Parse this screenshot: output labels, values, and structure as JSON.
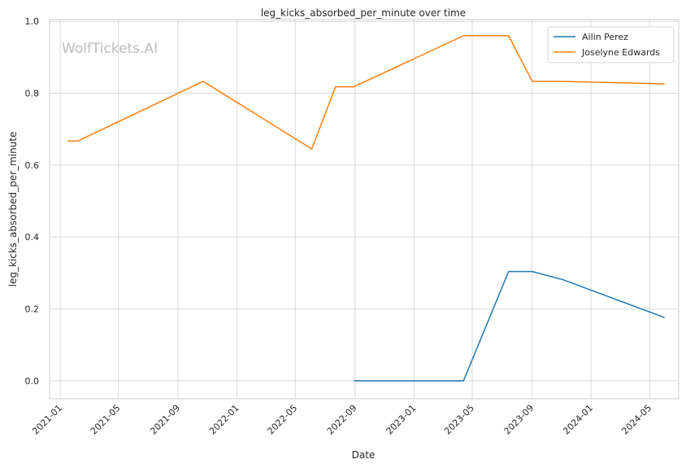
{
  "chart_data": {
    "type": "line",
    "title": "leg_kicks_absorbed_per_minute over time",
    "xlabel": "Date",
    "ylabel": "leg_kicks_absorbed_per_minute",
    "watermark": "WolfTickets.AI",
    "x_tick_labels": [
      "2021-01",
      "2021-05",
      "2021-09",
      "2022-01",
      "2022-05",
      "2022-09",
      "2023-01",
      "2023-05",
      "2023-09",
      "2024-01",
      "2024-05"
    ],
    "y_tick_labels": [
      "0.0",
      "0.2",
      "0.4",
      "0.6",
      "0.8",
      "1.0"
    ],
    "xlim": [
      "2020-12-10",
      "2024-06-30"
    ],
    "ylim": [
      -0.05,
      1.005
    ],
    "grid": true,
    "legend_position": "top-right",
    "series": [
      {
        "name": "Ailin Perez",
        "color": "#1f77b4",
        "x": [
          "2022-08-30",
          "2023-04-13",
          "2023-07-15",
          "2023-09-02",
          "2023-11-05",
          "2024-06-01"
        ],
        "y": [
          0.0,
          0.0,
          0.304,
          0.304,
          0.281,
          0.176
        ]
      },
      {
        "name": "Joselyne Edwards",
        "color": "#ff7f0e",
        "x": [
          "2021-01-16",
          "2021-02-06",
          "2021-10-23",
          "2022-06-04",
          "2022-07-23",
          "2022-08-30",
          "2023-04-13",
          "2023-07-15",
          "2023-09-02",
          "2023-11-05",
          "2024-06-01"
        ],
        "y": [
          0.667,
          0.667,
          0.833,
          0.645,
          0.818,
          0.818,
          0.96,
          0.96,
          0.833,
          0.833,
          0.826
        ]
      }
    ]
  }
}
